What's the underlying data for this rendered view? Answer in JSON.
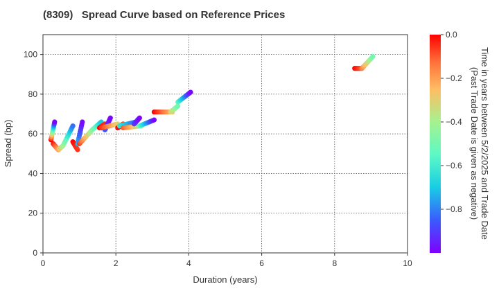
{
  "chart_data": {
    "type": "scatter",
    "title": "(8309)   Spread Curve based on Reference Prices",
    "xlabel": "Duration (years)",
    "ylabel": "Spread (bp)",
    "xlim": [
      0,
      10
    ],
    "ylim": [
      0,
      110
    ],
    "xticks": [
      "0",
      "2",
      "4",
      "6",
      "8",
      "10"
    ],
    "yticks": [
      "0",
      "20",
      "40",
      "60",
      "80",
      "100"
    ],
    "grid": true,
    "colorbar": {
      "label_line1": "Time in years between 5/2/2025 and Trade Date",
      "label_line2": "(Past Trade Date is given as negative)",
      "range": [
        -1.0,
        0.0
      ],
      "ticks": [
        "0.0",
        "−0.2",
        "−0.4",
        "−0.6",
        "−0.8"
      ],
      "colormap": "rainbow"
    },
    "segments": [
      {
        "x": [
          0.22,
          0.32
        ],
        "y": [
          57,
          66
        ],
        "t": [
          0.0,
          -0.99
        ]
      },
      {
        "x": [
          0.28,
          0.42
        ],
        "y": [
          55,
          52
        ],
        "t": [
          -0.02,
          -0.2
        ]
      },
      {
        "x": [
          0.42,
          0.55
        ],
        "y": [
          52,
          54
        ],
        "t": [
          -0.2,
          -0.4
        ]
      },
      {
        "x": [
          0.55,
          0.82
        ],
        "y": [
          54,
          64
        ],
        "t": [
          -0.4,
          -0.82
        ]
      },
      {
        "x": [
          0.82,
          0.95
        ],
        "y": [
          56,
          52
        ],
        "t": [
          0.0,
          -0.06
        ]
      },
      {
        "x": [
          0.95,
          1.08
        ],
        "y": [
          55,
          66
        ],
        "t": [
          -0.72,
          -0.99
        ]
      },
      {
        "x": [
          1.0,
          1.35
        ],
        "y": [
          55,
          62
        ],
        "t": [
          -0.06,
          -0.45
        ]
      },
      {
        "x": [
          1.35,
          1.6
        ],
        "y": [
          62,
          66
        ],
        "t": [
          -0.45,
          -0.7
        ]
      },
      {
        "x": [
          1.55,
          1.7
        ],
        "y": [
          63,
          65
        ],
        "t": [
          0.0,
          -0.05
        ]
      },
      {
        "x": [
          1.7,
          1.85
        ],
        "y": [
          62,
          68
        ],
        "t": [
          -0.85,
          -0.99
        ]
      },
      {
        "x": [
          1.6,
          2.05
        ],
        "y": [
          63,
          65
        ],
        "t": [
          -0.05,
          -0.3
        ]
      },
      {
        "x": [
          2.05,
          2.2
        ],
        "y": [
          63,
          65
        ],
        "t": [
          0.0,
          -0.08
        ]
      },
      {
        "x": [
          2.1,
          2.55
        ],
        "y": [
          64,
          66
        ],
        "t": [
          -0.62,
          -0.85
        ]
      },
      {
        "x": [
          2.2,
          2.7
        ],
        "y": [
          63,
          64
        ],
        "t": [
          -0.1,
          -0.4
        ]
      },
      {
        "x": [
          2.5,
          2.65
        ],
        "y": [
          65,
          68
        ],
        "t": [
          -0.9,
          -0.99
        ]
      },
      {
        "x": [
          2.65,
          3.05
        ],
        "y": [
          64,
          67
        ],
        "t": [
          -0.55,
          -0.99
        ]
      },
      {
        "x": [
          3.05,
          3.55
        ],
        "y": [
          71,
          71
        ],
        "t": [
          0.0,
          -0.25
        ]
      },
      {
        "x": [
          3.5,
          3.7
        ],
        "y": [
          71,
          74
        ],
        "t": [
          -0.3,
          -0.5
        ]
      },
      {
        "x": [
          3.7,
          4.05
        ],
        "y": [
          76,
          81
        ],
        "t": [
          -0.55,
          -0.99
        ]
      },
      {
        "x": [
          8.55,
          8.75
        ],
        "y": [
          93,
          93
        ],
        "t": [
          0.0,
          -0.1
        ]
      },
      {
        "x": [
          8.75,
          9.05
        ],
        "y": [
          93,
          99
        ],
        "t": [
          -0.15,
          -0.5
        ]
      }
    ]
  }
}
